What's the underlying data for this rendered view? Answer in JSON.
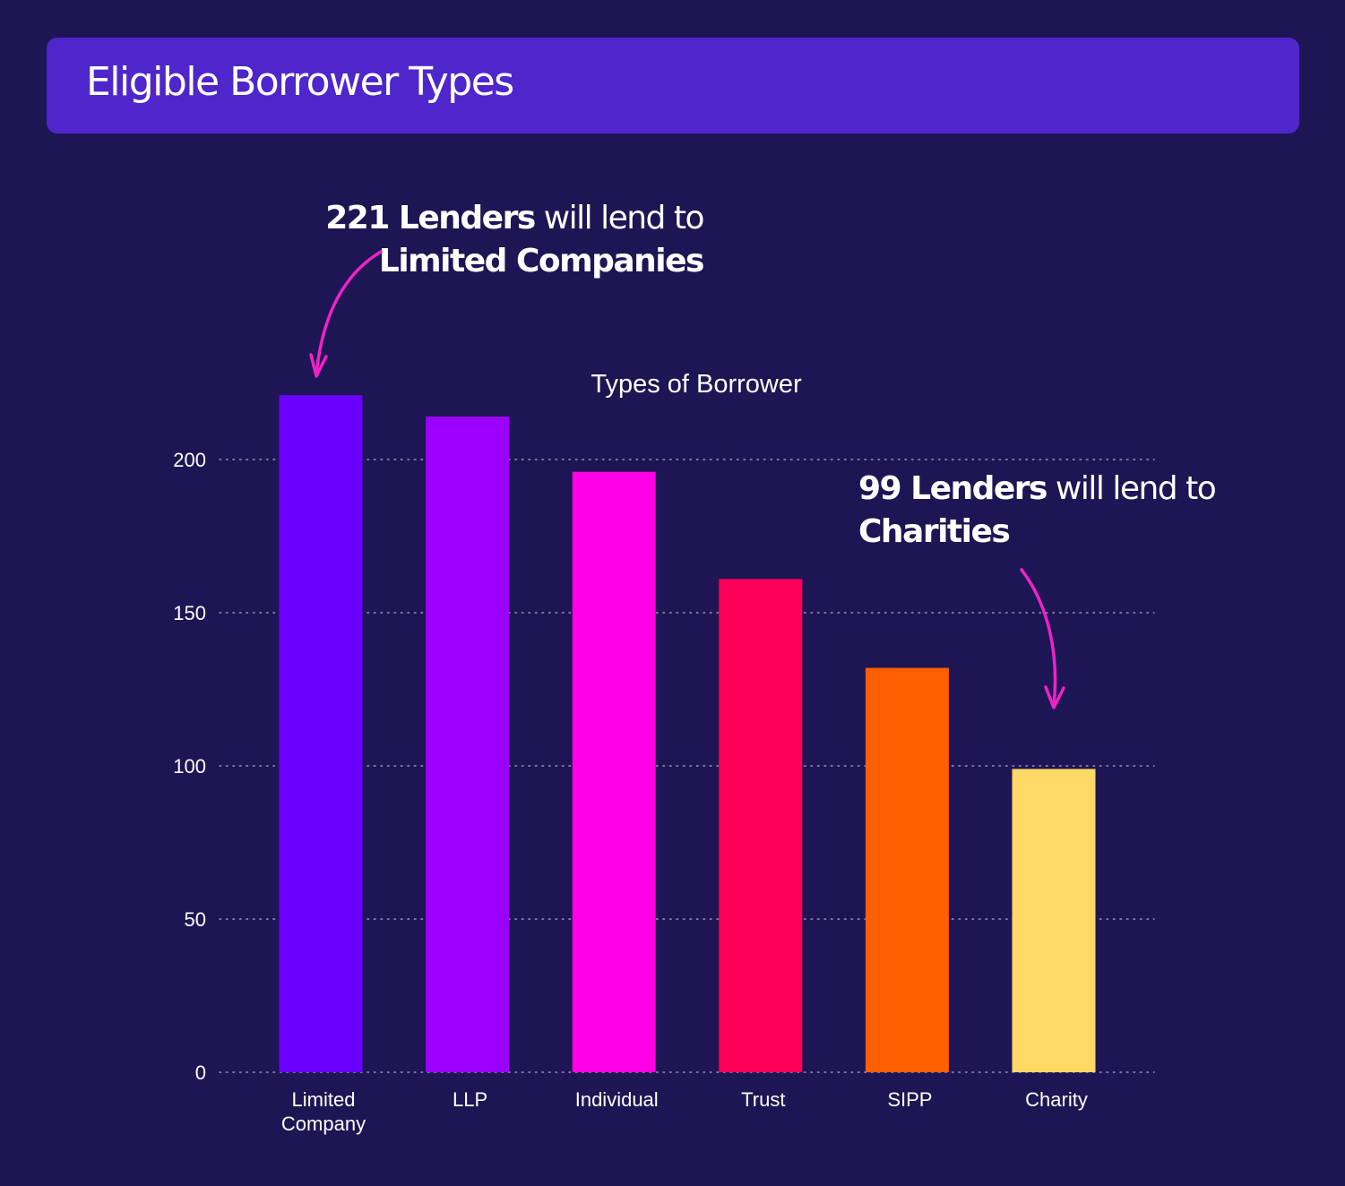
{
  "header": {
    "title": "Eligible Borrower Types"
  },
  "annotations": [
    {
      "count": "221 Lenders",
      "text": " will lend to",
      "target": "Limited Companies"
    },
    {
      "count": "99 Lenders",
      "text": " will lend to",
      "target": "Charities"
    }
  ],
  "chart_data": {
    "type": "bar",
    "title": "Types of Borrower",
    "xlabel": "",
    "ylabel": "",
    "categories": [
      "Limited Company",
      "LLP",
      "Individual",
      "Trust",
      "SIPP",
      "Charity"
    ],
    "category_lines": [
      [
        "Limited",
        "Company"
      ],
      [
        "LLP"
      ],
      [
        "Individual"
      ],
      [
        "Trust"
      ],
      [
        "SIPP"
      ],
      [
        "Charity"
      ]
    ],
    "values": [
      221,
      214,
      196,
      161,
      132,
      99
    ],
    "colors": [
      "#6a00ff",
      "#9b00ff",
      "#ff00e6",
      "#ff0059",
      "#ff5f00",
      "#ffd966"
    ],
    "ylim": [
      0,
      221
    ],
    "yticks": [
      0,
      50,
      100,
      150,
      200
    ],
    "grid": true,
    "grid_style": "dotted",
    "arrow_color": "#ee22c8"
  }
}
